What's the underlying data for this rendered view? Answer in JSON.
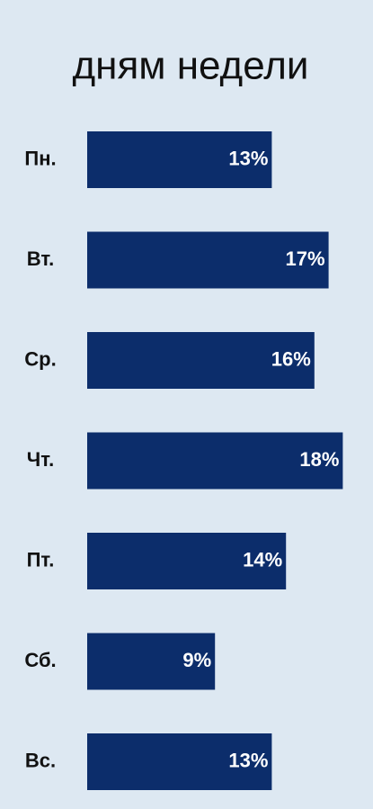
{
  "chart_data": {
    "type": "barh",
    "title": "дням недели",
    "categories": [
      "Пн.",
      "Вт.",
      "Ср.",
      "Чт.",
      "Пт.",
      "Сб.",
      "Вс."
    ],
    "values": [
      13,
      17,
      16,
      18,
      14,
      9,
      13
    ],
    "value_labels": [
      "13%",
      "17%",
      "16%",
      "18%",
      "14%",
      "9%",
      "13%"
    ],
    "color": "#0c2d6b"
  }
}
